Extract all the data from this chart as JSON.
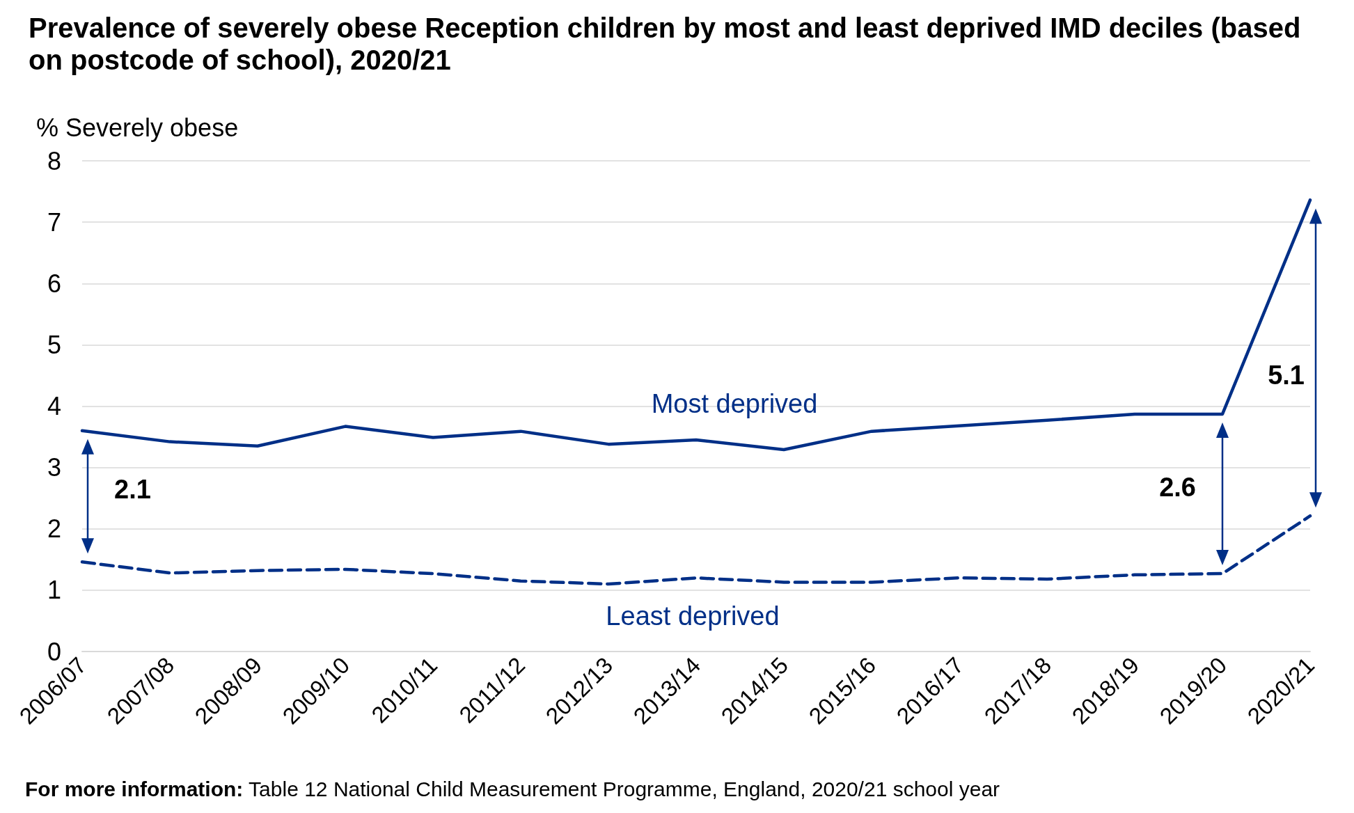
{
  "chart_data": {
    "type": "line",
    "title": "Prevalence of severely obese Reception children by most and least deprived IMD deciles (based on postcode of school), 2020/21",
    "ylabel": "% Severely obese",
    "categories": [
      "2006/07",
      "2007/08",
      "2008/09",
      "2009/10",
      "2010/11",
      "2011/12",
      "2012/13",
      "2013/14",
      "2014/15",
      "2015/16",
      "2016/17",
      "2017/18",
      "2018/19",
      "2019/20",
      "2020/21"
    ],
    "series": [
      {
        "name": "Most deprived",
        "color": "#002f87",
        "line_style": "solid",
        "values": [
          3.6,
          3.42,
          3.35,
          3.67,
          3.49,
          3.59,
          3.38,
          3.45,
          3.29,
          3.59,
          3.68,
          3.77,
          3.87,
          3.87,
          7.36
        ]
      },
      {
        "name": "Least deprived",
        "color": "#002f87",
        "line_style": "dashed",
        "values": [
          1.46,
          1.28,
          1.32,
          1.34,
          1.27,
          1.15,
          1.1,
          1.2,
          1.13,
          1.13,
          1.2,
          1.18,
          1.25,
          1.27,
          2.21
        ]
      }
    ],
    "ylim": [
      0,
      8
    ],
    "yticks": [
      0,
      1,
      2,
      3,
      4,
      5,
      6,
      7,
      8
    ],
    "grid": "y",
    "legend": false,
    "marker": "none",
    "annotations": [
      "2.1",
      "2.6",
      "5.1",
      "For more information: Table 12 National Child Measurement Programme, England, 2020/21 school year"
    ]
  }
}
